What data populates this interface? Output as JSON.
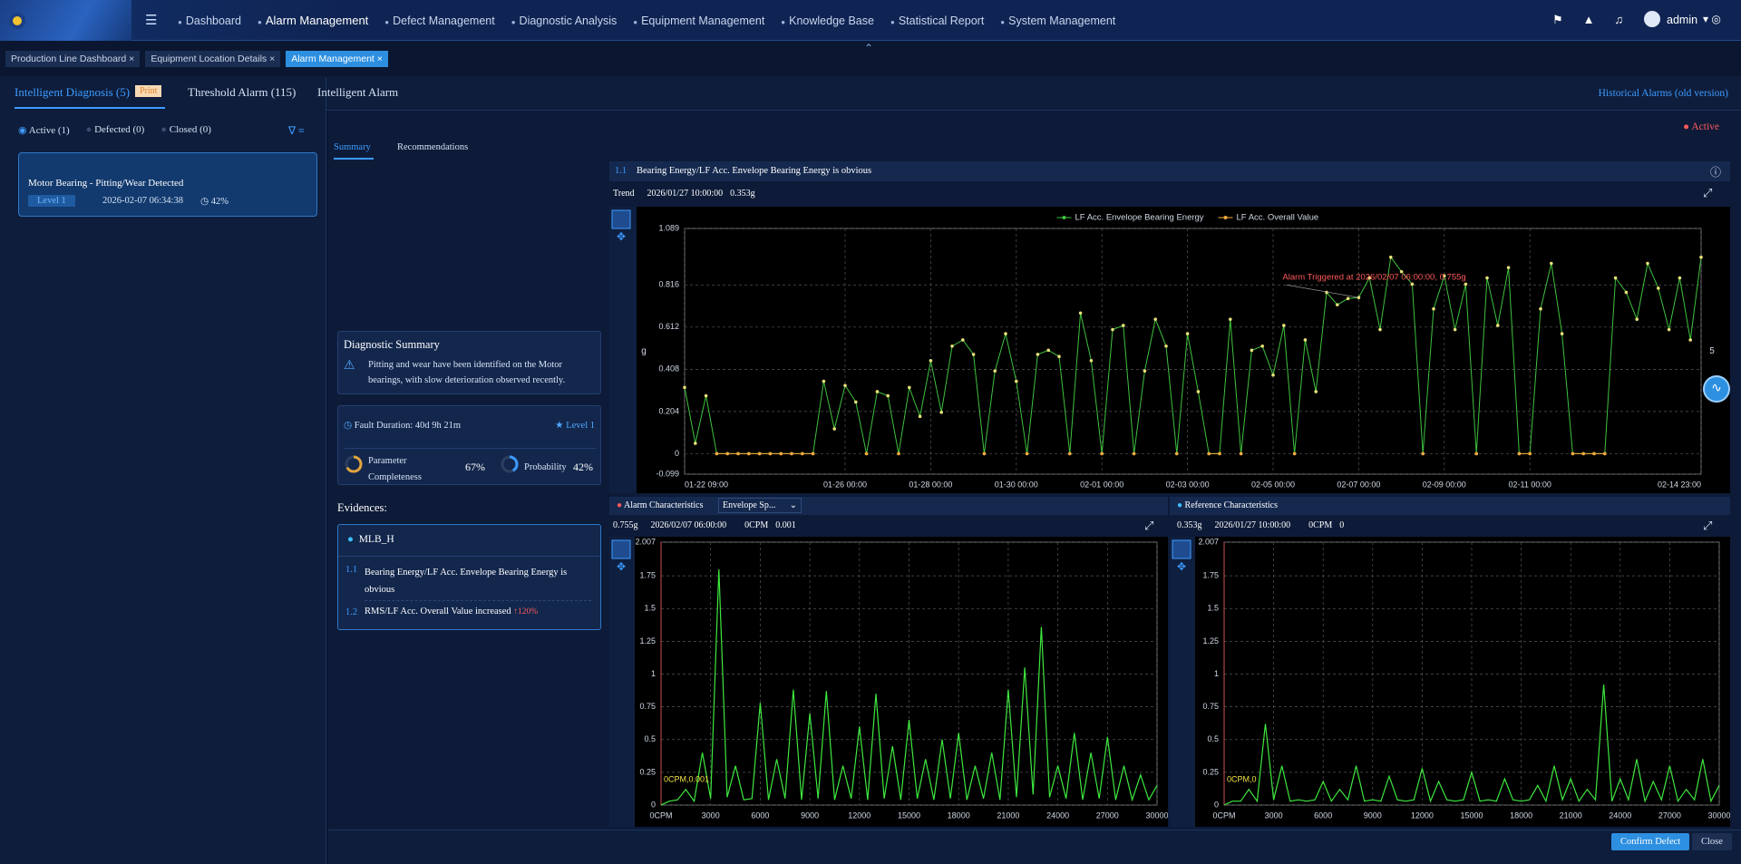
{
  "header": {
    "nav": [
      "Dashboard",
      "Alarm Management",
      "Defect Management",
      "Diagnostic Analysis",
      "Equipment Management",
      "Knowledge Base",
      "Statistical Report",
      "System Management"
    ],
    "user": "admin"
  },
  "page_tabs": [
    "Production Line Dashboard",
    "Equipment Location Details",
    "Alarm Management"
  ],
  "alarm_tabs": {
    "diagnosis": "Intelligent Diagnosis (5)",
    "badge": "Print",
    "threshold": "Threshold Alarm (115)",
    "intelligent": "Intelligent Alarm",
    "historical": "Historical Alarms (old version)"
  },
  "filters": [
    "Active (1)",
    "Defected (0)",
    "Closed (0)"
  ],
  "alarm_card": {
    "title": "Motor Bearing - Pitting/Wear Detected",
    "level": "Level 1",
    "time": "2026-02-07 06:34:38",
    "probability": "42%"
  },
  "status": "Active",
  "detail_tabs": [
    "Summary",
    "Recommendations"
  ],
  "summary": {
    "title": "Diagnostic Summary",
    "text": "Pitting and wear have been identified on the Motor bearings, with slow deterioration observed recently.",
    "fault_duration": "Fault Duration: 40d 9h 21m",
    "level": "Level 1",
    "completeness_label": "Parameter Completeness",
    "completeness": {
      "value": 67,
      "label": "67%"
    },
    "probability_label": "Probability",
    "probability": {
      "value": 42,
      "label": "42%"
    }
  },
  "evidences": {
    "title": "Evidences:",
    "group": "MLB_H",
    "items": [
      {
        "index": "1.1",
        "text": "Bearing Energy/LF Acc. Envelope Bearing Energy is obvious"
      },
      {
        "index": "1.2",
        "text": "RMS/LF Acc. Overall Value increased",
        "change": "↑120%"
      }
    ]
  },
  "trend_panel": {
    "index": "1.1",
    "title": "Bearing Energy/LF Acc. Envelope Bearing Energy is obvious",
    "trend_label": "Trend",
    "time": "2026/01/27 10:00:00",
    "value": "0.353g"
  },
  "spectrum_panels": [
    {
      "title": "Alarm Characteristics",
      "select": "Envelope Sp...",
      "amplitude": "0.755g",
      "time": "2026/02/07 06:00:00",
      "freq": "0CPM",
      "freq_value": "0.001"
    },
    {
      "title": "Reference Characteristics",
      "amplitude": "0.353g",
      "time": "2026/01/27 10:00:00",
      "freq": "0CPM",
      "freq_value": "0"
    }
  ],
  "buttons": [
    "Confirm Defect",
    "Close"
  ],
  "chart_data": [
    {
      "type": "line",
      "categories": [
        "01-22 09:00",
        null,
        null,
        null,
        null,
        null,
        null,
        null,
        null,
        null,
        null,
        null,
        null,
        null,
        null,
        "01-26 00:00",
        null,
        null,
        null,
        null,
        null,
        null,
        null,
        "01-28 00:00",
        null,
        null,
        null,
        null,
        null,
        null,
        null,
        "01-30 00:00",
        null,
        null,
        null,
        null,
        null,
        null,
        null,
        "02-01 00:00",
        null,
        null,
        null,
        null,
        null,
        null,
        null,
        "02-03 00:00",
        null,
        null,
        null,
        null,
        null,
        null,
        null,
        "02-05 00:00",
        null,
        null,
        null,
        null,
        null,
        null,
        null,
        "02-07 00:00",
        null,
        null,
        null,
        null,
        null,
        null,
        null,
        "02-09 00:00",
        null,
        null,
        null,
        null,
        null,
        null,
        null,
        "02-11 00:00",
        null,
        null,
        null,
        null,
        null,
        null,
        null,
        null,
        null,
        null,
        null,
        null,
        null,
        null,
        null,
        "02-14 23:00"
      ],
      "series": [
        {
          "name": "LF Acc. Envelope Bearing Energy",
          "color": "#3ec23e",
          "values": [
            0.32,
            0.05,
            0.28,
            0,
            0,
            0,
            0,
            0,
            0,
            0,
            0,
            0,
            0,
            0.35,
            0.12,
            0.33,
            0.25,
            0,
            0.3,
            0.28,
            0,
            0.32,
            0.18,
            0.45,
            0.2,
            0.52,
            0.55,
            0.48,
            0,
            0.4,
            0.58,
            0.35,
            0,
            0.48,
            0.5,
            0.47,
            0,
            0.68,
            0.45,
            0,
            0.6,
            0.62,
            0,
            0.4,
            0.65,
            0.52,
            0,
            0.58,
            0.3,
            0,
            0,
            0.65,
            0,
            0.5,
            0.52,
            0.38,
            0.62,
            0,
            0.55,
            0.3,
            0.78,
            0.72,
            0.75,
            0.755,
            0.85,
            0.6,
            0.95,
            0.88,
            0.82,
            0,
            0.7,
            0.86,
            0.6,
            0.82,
            0,
            0.85,
            0.62,
            0.9,
            0,
            0,
            0.7,
            0.92,
            0.58,
            0,
            0,
            0,
            0,
            0.85,
            0.78,
            0.65,
            0.92,
            0.8,
            0.6,
            0.85,
            0.55,
            0.95
          ]
        },
        {
          "name": "LF Acc. Overall Value",
          "color": "#f2a93b",
          "values": [
            null,
            null,
            null,
            0,
            0,
            0,
            0,
            0,
            0,
            0,
            0,
            0,
            0,
            null,
            null,
            null,
            null,
            0,
            null,
            null,
            0,
            null,
            null,
            null,
            null,
            null,
            null,
            null,
            0,
            null,
            null,
            null,
            0,
            null,
            null,
            null,
            0,
            null,
            null,
            0,
            null,
            null,
            0,
            null,
            null,
            null,
            0,
            null,
            null,
            0,
            0,
            null,
            0,
            null,
            null,
            null,
            null,
            0,
            null,
            null,
            null,
            null,
            null,
            null,
            null,
            null,
            null,
            null,
            null,
            0,
            null,
            null,
            null,
            null,
            0,
            null,
            null,
            null,
            0,
            0,
            null,
            null,
            null,
            0,
            0,
            0,
            0,
            null,
            null,
            null,
            null,
            null,
            null,
            null,
            null,
            null
          ]
        }
      ],
      "ylim": [
        -0.099,
        1.089
      ],
      "yticks": [
        -0.099,
        0,
        0.204,
        0.408,
        0.612,
        0.816,
        1.089
      ],
      "y_label": "g",
      "y2_label": "5",
      "grid": true,
      "annotation": "Alarm Triggered at 2026/02/07 06:00:00, 0.755g",
      "annotation_index": 63
    },
    {
      "type": "line",
      "x": [
        0,
        500,
        1000,
        1500,
        2000,
        2500,
        3000,
        3500,
        4000,
        4500,
        5000,
        5500,
        6000,
        6500,
        7000,
        7500,
        8000,
        8500,
        9000,
        9500,
        10000,
        10500,
        11000,
        11500,
        12000,
        12500,
        13000,
        13500,
        14000,
        14500,
        15000,
        15500,
        16000,
        16500,
        17000,
        17500,
        18000,
        18500,
        19000,
        19500,
        20000,
        20500,
        21000,
        21500,
        22000,
        22500,
        23000,
        23500,
        24000,
        24500,
        25000,
        25500,
        26000,
        26500,
        27000,
        27500,
        28000,
        28500,
        29000,
        29500,
        30000
      ],
      "series": [
        {
          "color": "#3ee83e",
          "values": [
            0.001,
            0.03,
            0.04,
            0.12,
            0.03,
            0.4,
            0.05,
            1.8,
            0.06,
            0.3,
            0.04,
            0.05,
            0.78,
            0.04,
            0.35,
            0.05,
            0.88,
            0.04,
            0.7,
            0.05,
            0.87,
            0.04,
            0.3,
            0.05,
            0.6,
            0.04,
            0.85,
            0.05,
            0.45,
            0.04,
            0.65,
            0.05,
            0.35,
            0.04,
            0.5,
            0.05,
            0.55,
            0.04,
            0.3,
            0.05,
            0.4,
            0.04,
            0.88,
            0.06,
            1.05,
            0.08,
            1.36,
            0.06,
            0.3,
            0.05,
            0.55,
            0.04,
            0.4,
            0.05,
            0.52,
            0.04,
            0.3,
            0.04,
            0.23,
            0.04,
            0.15
          ]
        }
      ],
      "xlim": [
        0,
        30000
      ],
      "xticks": [
        {
          "value": 0,
          "label": "0CPM"
        },
        3000,
        6000,
        9000,
        12000,
        15000,
        18000,
        21000,
        24000,
        27000,
        30000
      ],
      "ylim": [
        0,
        2.007
      ],
      "yticks": [
        0,
        0.25,
        0.5,
        0.75,
        1,
        1.25,
        1.5,
        1.75,
        2.007
      ],
      "grid": true,
      "annotation": "0CPM,0.001"
    },
    {
      "type": "line",
      "x": [
        0,
        500,
        1000,
        1500,
        2000,
        2500,
        3000,
        3500,
        4000,
        4500,
        5000,
        5500,
        6000,
        6500,
        7000,
        7500,
        8000,
        8500,
        9000,
        9500,
        10000,
        10500,
        11000,
        11500,
        12000,
        12500,
        13000,
        13500,
        14000,
        14500,
        15000,
        15500,
        16000,
        16500,
        17000,
        17500,
        18000,
        18500,
        19000,
        19500,
        20000,
        20500,
        21000,
        21500,
        22000,
        22500,
        23000,
        23500,
        24000,
        24500,
        25000,
        25500,
        26000,
        26500,
        27000,
        27500,
        28000,
        28500,
        29000,
        29500,
        30000
      ],
      "series": [
        {
          "color": "#3ee83e",
          "values": [
            0,
            0.03,
            0.03,
            0.12,
            0.03,
            0.62,
            0.04,
            0.3,
            0.03,
            0.04,
            0.03,
            0.04,
            0.18,
            0.03,
            0.12,
            0.04,
            0.3,
            0.03,
            0.04,
            0.03,
            0.22,
            0.04,
            0.03,
            0.04,
            0.28,
            0.03,
            0.18,
            0.04,
            0.03,
            0.04,
            0.25,
            0.03,
            0.04,
            0.03,
            0.2,
            0.04,
            0.03,
            0.04,
            0.15,
            0.03,
            0.3,
            0.04,
            0.2,
            0.03,
            0.12,
            0.04,
            0.92,
            0.03,
            0.2,
            0.04,
            0.35,
            0.03,
            0.18,
            0.04,
            0.3,
            0.03,
            0.12,
            0.04,
            0.35,
            0.03,
            0.15
          ]
        }
      ],
      "xlim": [
        0,
        30000
      ],
      "xticks": [
        {
          "value": 0,
          "label": "0CPM"
        },
        3000,
        6000,
        9000,
        12000,
        15000,
        18000,
        21000,
        24000,
        27000,
        30000
      ],
      "ylim": [
        0,
        2.007
      ],
      "yticks": [
        0,
        0.25,
        0.5,
        0.75,
        1,
        1.25,
        1.5,
        1.75,
        2.007
      ],
      "grid": true,
      "annotation": "0CPM,0"
    }
  ]
}
